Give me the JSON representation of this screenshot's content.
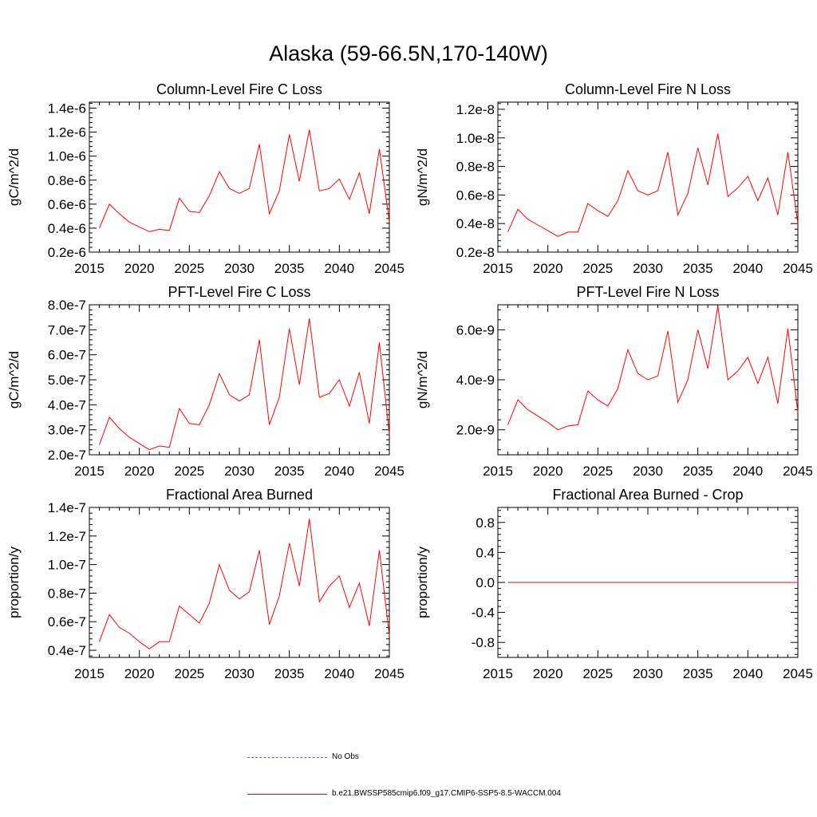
{
  "page_title": "Alaska (59-66.5N,170-140W)",
  "colors": {
    "series": "#ff0000",
    "obs": "#6666cc",
    "axis": "#000000"
  },
  "legend": {
    "obs_label": "No Obs",
    "model_label": "b.e21.BWSSP585cmip6.f09_g17.CMIP6-SSP5-8.5-WACCM.004"
  },
  "chart_data": [
    {
      "type": "line",
      "title": "Column-Level Fire C Loss",
      "xlabel": "",
      "ylabel": "gC/m^2/d",
      "xlim": [
        2015,
        2045
      ],
      "ylim": [
        2e-07,
        1.45e-06
      ],
      "xticks": [
        2015,
        2020,
        2025,
        2030,
        2035,
        2040,
        2045
      ],
      "xtick_labels": [
        "2015",
        "2020",
        "2025",
        "2030",
        "2035",
        "2040",
        "2045"
      ],
      "yticks": [
        2e-07,
        4e-07,
        6e-07,
        8e-07,
        1e-06,
        1.2e-06,
        1.4e-06
      ],
      "ytick_labels": [
        "0.2e-6",
        "0.4e-6",
        "0.6e-6",
        "0.8e-6",
        "1.0e-6",
        "1.2e-6",
        "1.4e-6"
      ],
      "series": [
        {
          "name": "b.e21.BWSSP585cmip6.f09_g17.CMIP6-SSP5-8.5-WACCM.004",
          "x": [
            2016,
            2017,
            2018,
            2019,
            2020,
            2021,
            2022,
            2023,
            2024,
            2025,
            2026,
            2027,
            2028,
            2029,
            2030,
            2031,
            2032,
            2033,
            2034,
            2035,
            2036,
            2037,
            2038,
            2039,
            2040,
            2041,
            2042,
            2043,
            2044,
            2045
          ],
          "values": [
            4e-07,
            6e-07,
            5.2e-07,
            4.5e-07,
            4.1e-07,
            3.7e-07,
            3.9e-07,
            3.8e-07,
            6.5e-07,
            5.4e-07,
            5.3e-07,
            6.7e-07,
            8.7e-07,
            7.3e-07,
            6.9e-07,
            7.3e-07,
            1.1e-06,
            5.2e-07,
            7.1e-07,
            1.18e-06,
            7.9e-07,
            1.22e-06,
            7.1e-07,
            7.3e-07,
            8.1e-07,
            6.4e-07,
            8.6e-07,
            5.2e-07,
            1.06e-06,
            4.5e-07
          ]
        }
      ]
    },
    {
      "type": "line",
      "title": "Column-Level Fire N Loss",
      "xlabel": "",
      "ylabel": "gN/m^2/d",
      "xlim": [
        2015,
        2045
      ],
      "ylim": [
        2e-09,
        1.25e-08
      ],
      "xticks": [
        2015,
        2020,
        2025,
        2030,
        2035,
        2040,
        2045
      ],
      "xtick_labels": [
        "2015",
        "2020",
        "2025",
        "2030",
        "2035",
        "2040",
        "2045"
      ],
      "yticks": [
        2e-09,
        4e-09,
        6e-09,
        8e-09,
        1e-08,
        1.2e-08
      ],
      "ytick_labels": [
        "0.2e-8",
        "0.4e-8",
        "0.6e-8",
        "0.8e-8",
        "1.0e-8",
        "1.2e-8"
      ],
      "series": [
        {
          "name": "b.e21.BWSSP585cmip6.f09_g17.CMIP6-SSP5-8.5-WACCM.004",
          "x": [
            2016,
            2017,
            2018,
            2019,
            2020,
            2021,
            2022,
            2023,
            2024,
            2025,
            2026,
            2027,
            2028,
            2029,
            2030,
            2031,
            2032,
            2033,
            2034,
            2035,
            2036,
            2037,
            2038,
            2039,
            2040,
            2041,
            2042,
            2043,
            2044,
            2045
          ],
          "values": [
            3.4e-09,
            5e-09,
            4.3e-09,
            3.9e-09,
            3.5e-09,
            3.1e-09,
            3.4e-09,
            3.4e-09,
            5.4e-09,
            4.9e-09,
            4.5e-09,
            5.6e-09,
            7.7e-09,
            6.3e-09,
            6e-09,
            6.3e-09,
            9e-09,
            4.6e-09,
            6.1e-09,
            9.3e-09,
            6.7e-09,
            1.03e-08,
            5.9e-09,
            6.5e-09,
            7.3e-09,
            5.6e-09,
            7.2e-09,
            4.6e-09,
            9e-09,
            4e-09
          ]
        }
      ]
    },
    {
      "type": "line",
      "title": "PFT-Level Fire C Loss",
      "xlabel": "",
      "ylabel": "gC/m^2/d",
      "xlim": [
        2015,
        2045
      ],
      "ylim": [
        2e-07,
        8e-07
      ],
      "xticks": [
        2015,
        2020,
        2025,
        2030,
        2035,
        2040,
        2045
      ],
      "xtick_labels": [
        "2015",
        "2020",
        "2025",
        "2030",
        "2035",
        "2040",
        "2045"
      ],
      "yticks": [
        2e-07,
        3e-07,
        4e-07,
        5e-07,
        6e-07,
        7e-07,
        8e-07
      ],
      "ytick_labels": [
        "2.0e-7",
        "3.0e-7",
        "4.0e-7",
        "5.0e-7",
        "6.0e-7",
        "7.0e-7",
        "8.0e-7"
      ],
      "series": [
        {
          "name": "b.e21.BWSSP585cmip6.f09_g17.CMIP6-SSP5-8.5-WACCM.004",
          "x": [
            2016,
            2017,
            2018,
            2019,
            2020,
            2021,
            2022,
            2023,
            2024,
            2025,
            2026,
            2027,
            2028,
            2029,
            2030,
            2031,
            2032,
            2033,
            2034,
            2035,
            2036,
            2037,
            2038,
            2039,
            2040,
            2041,
            2042,
            2043,
            2044,
            2045
          ],
          "values": [
            2.4e-07,
            3.5e-07,
            3.05e-07,
            2.7e-07,
            2.45e-07,
            2.2e-07,
            2.35e-07,
            2.3e-07,
            3.85e-07,
            3.25e-07,
            3.2e-07,
            4e-07,
            5.25e-07,
            4.4e-07,
            4.15e-07,
            4.4e-07,
            6.6e-07,
            3.2e-07,
            4.3e-07,
            7.05e-07,
            4.8e-07,
            7.45e-07,
            4.3e-07,
            4.45e-07,
            5e-07,
            3.95e-07,
            5.3e-07,
            3.25e-07,
            6.5e-07,
            2.8e-07
          ]
        }
      ]
    },
    {
      "type": "line",
      "title": "PFT-Level Fire N Loss",
      "xlabel": "",
      "ylabel": "gN/m^2/d",
      "xlim": [
        2015,
        2045
      ],
      "ylim": [
        1e-09,
        7e-09
      ],
      "xticks": [
        2015,
        2020,
        2025,
        2030,
        2035,
        2040,
        2045
      ],
      "xtick_labels": [
        "2015",
        "2020",
        "2025",
        "2030",
        "2035",
        "2040",
        "2045"
      ],
      "yticks": [
        2e-09,
        4e-09,
        6e-09
      ],
      "ytick_labels": [
        "2.0e-9",
        "4.0e-9",
        "6.0e-9"
      ],
      "series": [
        {
          "name": "b.e21.BWSSP585cmip6.f09_g17.CMIP6-SSP5-8.5-WACCM.004",
          "x": [
            2016,
            2017,
            2018,
            2019,
            2020,
            2021,
            2022,
            2023,
            2024,
            2025,
            2026,
            2027,
            2028,
            2029,
            2030,
            2031,
            2032,
            2033,
            2034,
            2035,
            2036,
            2037,
            2038,
            2039,
            2040,
            2041,
            2042,
            2043,
            2044,
            2045
          ],
          "values": [
            2.2e-09,
            3.2e-09,
            2.8e-09,
            2.55e-09,
            2.3e-09,
            2e-09,
            2.15e-09,
            2.2e-09,
            3.55e-09,
            3.2e-09,
            2.95e-09,
            3.65e-09,
            5.2e-09,
            4.25e-09,
            4e-09,
            4.15e-09,
            5.95e-09,
            3.1e-09,
            4e-09,
            6e-09,
            4.45e-09,
            6.95e-09,
            4e-09,
            4.35e-09,
            4.9e-09,
            3.85e-09,
            4.9e-09,
            3.05e-09,
            6.05e-09,
            2.7e-09
          ]
        }
      ]
    },
    {
      "type": "line",
      "title": "Fractional Area Burned",
      "xlabel": "",
      "ylabel": "proportion/y",
      "xlim": [
        2015,
        2045
      ],
      "ylim": [
        3.5e-08,
        1.4e-07
      ],
      "xticks": [
        2015,
        2020,
        2025,
        2030,
        2035,
        2040,
        2045
      ],
      "xtick_labels": [
        "2015",
        "2020",
        "2025",
        "2030",
        "2035",
        "2040",
        "2045"
      ],
      "yticks": [
        4e-08,
        6e-08,
        8e-08,
        1e-07,
        1.2e-07,
        1.4e-07
      ],
      "ytick_labels": [
        "0.4e-7",
        "0.6e-7",
        "0.8e-7",
        "1.0e-7",
        "1.2e-7",
        "1.4e-7"
      ],
      "series": [
        {
          "name": "b.e21.BWSSP585cmip6.f09_g17.CMIP6-SSP5-8.5-WACCM.004",
          "x": [
            2016,
            2017,
            2018,
            2019,
            2020,
            2021,
            2022,
            2023,
            2024,
            2025,
            2026,
            2027,
            2028,
            2029,
            2030,
            2031,
            2032,
            2033,
            2034,
            2035,
            2036,
            2037,
            2038,
            2039,
            2040,
            2041,
            2042,
            2043,
            2044,
            2045
          ],
          "values": [
            4.6e-08,
            6.5e-08,
            5.6e-08,
            5.2e-08,
            4.6e-08,
            4.1e-08,
            4.6e-08,
            4.6e-08,
            7.1e-08,
            6.5e-08,
            5.9e-08,
            7.3e-08,
            1e-07,
            8.2e-08,
            7.6e-08,
            8.1e-08,
            1.1e-07,
            5.8e-08,
            7.8e-08,
            1.15e-07,
            8.5e-08,
            1.32e-07,
            7.4e-08,
            8.5e-08,
            9.2e-08,
            7e-08,
            8.7e-08,
            5.7e-08,
            1.1e-07,
            5e-08
          ]
        }
      ]
    },
    {
      "type": "line",
      "title": "Fractional Area Burned - Crop",
      "xlabel": "",
      "ylabel": "proportion/y",
      "xlim": [
        2015,
        2045
      ],
      "ylim": [
        -1.0,
        1.0
      ],
      "xticks": [
        2015,
        2020,
        2025,
        2030,
        2035,
        2040,
        2045
      ],
      "xtick_labels": [
        "2015",
        "2020",
        "2025",
        "2030",
        "2035",
        "2040",
        "2045"
      ],
      "yticks": [
        -0.8,
        -0.4,
        0.0,
        0.4,
        0.8
      ],
      "ytick_labels": [
        "-0.8",
        "-0.4",
        "0.0",
        "0.4",
        "0.8"
      ],
      "series": [
        {
          "name": "b.e21.BWSSP585cmip6.f09_g17.CMIP6-SSP5-8.5-WACCM.004",
          "x": [
            2016,
            2017,
            2018,
            2019,
            2020,
            2021,
            2022,
            2023,
            2024,
            2025,
            2026,
            2027,
            2028,
            2029,
            2030,
            2031,
            2032,
            2033,
            2034,
            2035,
            2036,
            2037,
            2038,
            2039,
            2040,
            2041,
            2042,
            2043,
            2044,
            2045
          ],
          "values": [
            0,
            0,
            0,
            0,
            0,
            0,
            0,
            0,
            0,
            0,
            0,
            0,
            0,
            0,
            0,
            0,
            0,
            0,
            0,
            0,
            0,
            0,
            0,
            0,
            0,
            0,
            0,
            0,
            0,
            0
          ]
        }
      ]
    }
  ]
}
